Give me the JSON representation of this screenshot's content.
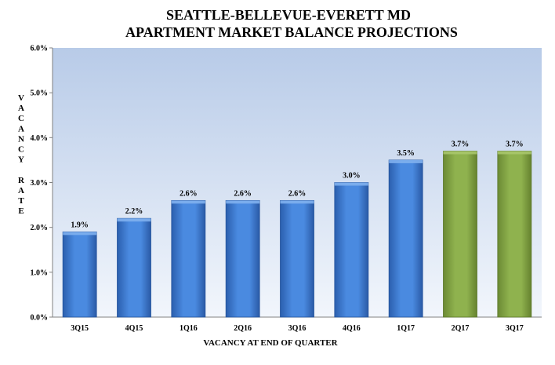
{
  "chart_data": {
    "type": "bar",
    "title": "SEATTLE-BELLEVUE-EVERETT MD",
    "subtitle": "APARTMENT MARKET BALANCE PROJECTIONS",
    "xlabel": "VACANCY  AT END OF QUARTER",
    "ylabel": "VACANCY RATE",
    "categories": [
      "3Q15",
      "4Q15",
      "1Q16",
      "2Q16",
      "3Q16",
      "4Q16",
      "1Q17",
      "2Q17",
      "3Q17"
    ],
    "values": [
      1.9,
      2.2,
      2.6,
      2.6,
      2.6,
      3.0,
      3.5,
      3.7,
      3.7
    ],
    "data_labels": [
      "1.9%",
      "2.2%",
      "2.6%",
      "2.6%",
      "2.6%",
      "3.0%",
      "3.5%",
      "3.7%",
      "3.7%"
    ],
    "y_ticks": [
      "0.0%",
      "1.0%",
      "2.0%",
      "3.0%",
      "4.0%",
      "5.0%",
      "6.0%"
    ],
    "ylim": [
      0,
      6
    ],
    "grid": false,
    "legend": "none",
    "colors": {
      "actual": "#3f7fd6",
      "projected": "#86a94a",
      "plot_bg_top": "#b9cce9",
      "plot_bg_bottom": "#eef3fb"
    },
    "series_kind": [
      "actual",
      "actual",
      "actual",
      "actual",
      "actual",
      "actual",
      "actual",
      "projected",
      "projected"
    ]
  }
}
